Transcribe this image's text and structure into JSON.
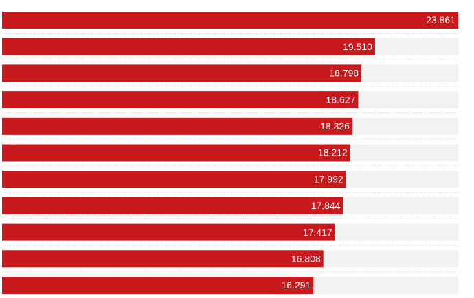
{
  "chart_data": {
    "type": "bar",
    "orientation": "horizontal",
    "categories": [
      null,
      null,
      null,
      null,
      null,
      null,
      null,
      null,
      null,
      null,
      null
    ],
    "values": [
      23.861,
      19.51,
      18.798,
      18.627,
      18.326,
      18.212,
      17.992,
      17.844,
      17.417,
      16.808,
      16.291
    ],
    "value_labels": [
      "23.861",
      "19.510",
      "18.798",
      "18.627",
      "18.326",
      "18.212",
      "17.992",
      "17.844",
      "17.417",
      "16.808",
      "16.291"
    ],
    "color": "#c8191c",
    "xlim": [
      0,
      23.861
    ]
  }
}
